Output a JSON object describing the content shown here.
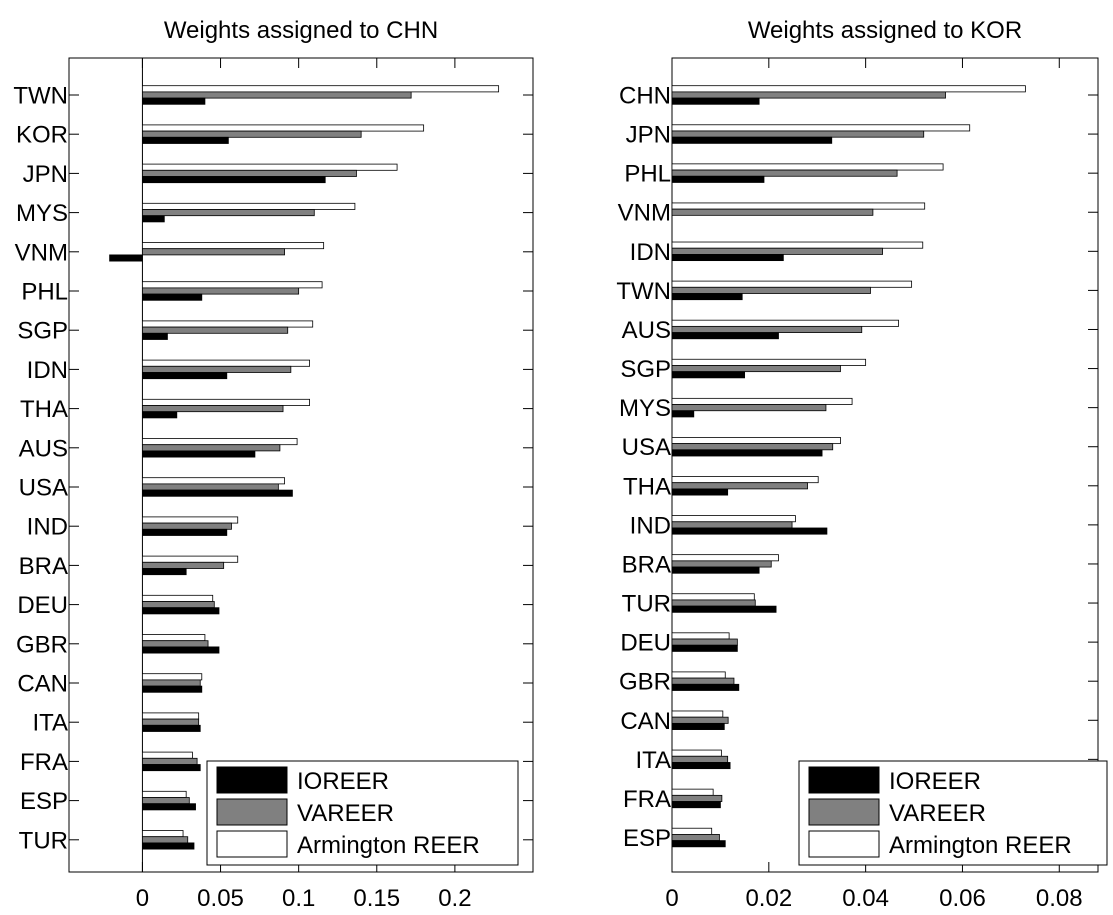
{
  "chart_data": [
    {
      "type": "bar",
      "orientation": "horizontal",
      "title": "Weights assigned to CHN",
      "categories": [
        "TWN",
        "KOR",
        "JPN",
        "MYS",
        "VNM",
        "PHL",
        "SGP",
        "IDN",
        "THA",
        "AUS",
        "USA",
        "IND",
        "BRA",
        "DEU",
        "GBR",
        "CAN",
        "ITA",
        "FRA",
        "ESP",
        "TUR"
      ],
      "series": [
        {
          "name": "IOREER",
          "color": "#000000",
          "values": [
            0.04,
            0.055,
            0.117,
            0.014,
            -0.021,
            0.038,
            0.016,
            0.054,
            0.022,
            0.072,
            0.096,
            0.054,
            0.028,
            0.049,
            0.049,
            0.038,
            0.037,
            0.037,
            0.034,
            0.033
          ]
        },
        {
          "name": "VAREER",
          "color": "#808080",
          "values": [
            0.172,
            0.14,
            0.137,
            0.11,
            0.091,
            0.1,
            0.093,
            0.095,
            0.09,
            0.088,
            0.087,
            0.057,
            0.052,
            0.046,
            0.042,
            0.037,
            0.036,
            0.035,
            0.03,
            0.029
          ]
        },
        {
          "name": "Armington REER",
          "color": "#ffffff",
          "values": [
            0.228,
            0.18,
            0.163,
            0.136,
            0.116,
            0.115,
            0.109,
            0.107,
            0.107,
            0.099,
            0.091,
            0.061,
            0.061,
            0.045,
            0.04,
            0.038,
            0.036,
            0.032,
            0.028,
            0.026
          ]
        }
      ],
      "xlim": [
        -0.047,
        0.25
      ],
      "xticks": [
        0,
        0.05,
        0.1,
        0.15,
        0.2
      ],
      "xtick_labels": [
        "0",
        "0.05",
        "0.1",
        "0.15",
        "0.2"
      ],
      "zero_line": true,
      "grid": false,
      "legend_position": "bottom-right"
    },
    {
      "type": "bar",
      "orientation": "horizontal",
      "title": "Weights assigned to KOR",
      "categories": [
        "CHN",
        "JPN",
        "PHL",
        "VNM",
        "IDN",
        "TWN",
        "AUS",
        "SGP",
        "MYS",
        "USA",
        "THA",
        "IND",
        "BRA",
        "TUR",
        "DEU",
        "GBR",
        "CAN",
        "ITA",
        "FRA",
        "ESP"
      ],
      "series": [
        {
          "name": "IOREER",
          "color": "#000000",
          "values": [
            0.018,
            0.033,
            0.019,
            0.0,
            0.023,
            0.0145,
            0.022,
            0.015,
            0.0045,
            0.031,
            0.0115,
            0.032,
            0.018,
            0.0215,
            0.0135,
            0.0138,
            0.0108,
            0.012,
            0.01,
            0.011
          ]
        },
        {
          "name": "VAREER",
          "color": "#808080",
          "values": [
            0.0565,
            0.052,
            0.0465,
            0.0415,
            0.0435,
            0.041,
            0.0392,
            0.0348,
            0.0318,
            0.0332,
            0.028,
            0.0248,
            0.0205,
            0.0172,
            0.0135,
            0.0128,
            0.0116,
            0.0115,
            0.0103,
            0.0098
          ]
        },
        {
          "name": "Armington REER",
          "color": "#ffffff",
          "values": [
            0.073,
            0.0615,
            0.056,
            0.0522,
            0.0518,
            0.0495,
            0.0468,
            0.04,
            0.0372,
            0.0348,
            0.0302,
            0.0255,
            0.022,
            0.017,
            0.0118,
            0.011,
            0.0105,
            0.0102,
            0.0085,
            0.0082
          ]
        }
      ],
      "xlim": [
        0,
        0.088
      ],
      "xticks": [
        0,
        0.02,
        0.04,
        0.06,
        0.08
      ],
      "xtick_labels": [
        "0",
        "0.02",
        "0.04",
        "0.06",
        "0.08"
      ],
      "zero_line": false,
      "grid": false,
      "legend_position": "bottom-right"
    }
  ]
}
